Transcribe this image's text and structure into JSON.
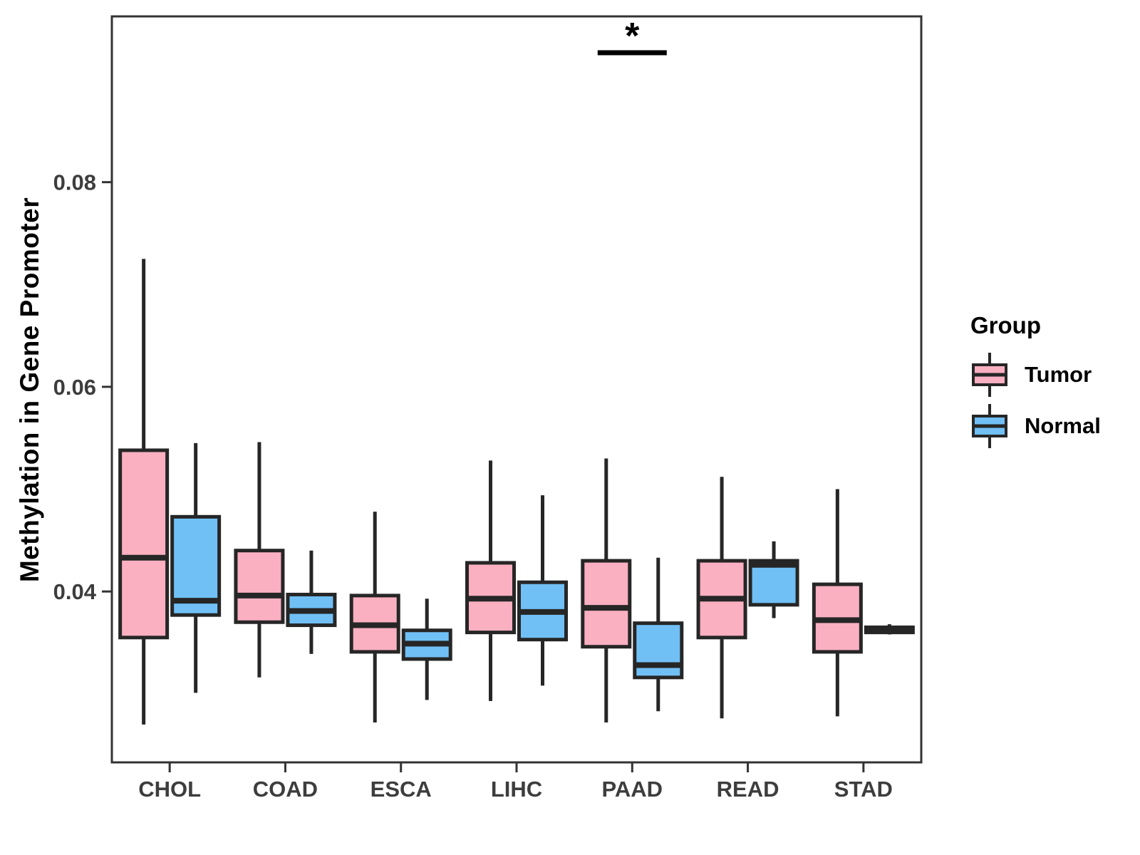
{
  "chart_data": {
    "type": "boxplot",
    "title": "",
    "xlabel": "",
    "ylabel": "Methylation in Gene Promoter",
    "categories": [
      "CHOL",
      "COAD",
      "ESCA",
      "LIHC",
      "PAAD",
      "READ",
      "STAD"
    ],
    "y_ticks": [
      0.04,
      0.06,
      0.08
    ],
    "y_tick_labels": [
      "0.04",
      "0.06",
      "0.08"
    ],
    "ylim": [
      0.0233,
      0.0962
    ],
    "grid": false,
    "legend_position": "right",
    "series": [
      {
        "name": "Tumor",
        "color": "#FAB0C1",
        "boxes": [
          {
            "category": "CHOL",
            "whisker_low": 0.027,
            "q1": 0.0355,
            "median": 0.0433,
            "q3": 0.0538,
            "whisker_high": 0.0725
          },
          {
            "category": "COAD",
            "whisker_low": 0.0316,
            "q1": 0.037,
            "median": 0.0396,
            "q3": 0.044,
            "whisker_high": 0.0546
          },
          {
            "category": "ESCA",
            "whisker_low": 0.0272,
            "q1": 0.0341,
            "median": 0.0367,
            "q3": 0.0396,
            "whisker_high": 0.0478
          },
          {
            "category": "LIHC",
            "whisker_low": 0.0293,
            "q1": 0.036,
            "median": 0.0393,
            "q3": 0.0428,
            "whisker_high": 0.0528
          },
          {
            "category": "PAAD",
            "whisker_low": 0.0272,
            "q1": 0.0346,
            "median": 0.0384,
            "q3": 0.043,
            "whisker_high": 0.053
          },
          {
            "category": "READ",
            "whisker_low": 0.0276,
            "q1": 0.0355,
            "median": 0.0393,
            "q3": 0.043,
            "whisker_high": 0.0512
          },
          {
            "category": "STAD",
            "whisker_low": 0.0278,
            "q1": 0.0341,
            "median": 0.0372,
            "q3": 0.0407,
            "whisker_high": 0.05
          }
        ]
      },
      {
        "name": "Normal",
        "color": "#70C0F6",
        "boxes": [
          {
            "category": "CHOL",
            "whisker_low": 0.0301,
            "q1": 0.0377,
            "median": 0.0391,
            "q3": 0.0473,
            "whisker_high": 0.0545
          },
          {
            "category": "COAD",
            "whisker_low": 0.0339,
            "q1": 0.0367,
            "median": 0.0381,
            "q3": 0.0397,
            "whisker_high": 0.044
          },
          {
            "category": "ESCA",
            "whisker_low": 0.0294,
            "q1": 0.0334,
            "median": 0.0349,
            "q3": 0.0362,
            "whisker_high": 0.0393
          },
          {
            "category": "LIHC",
            "whisker_low": 0.0308,
            "q1": 0.0353,
            "median": 0.038,
            "q3": 0.0409,
            "whisker_high": 0.0494
          },
          {
            "category": "PAAD",
            "whisker_low": 0.0283,
            "q1": 0.0316,
            "median": 0.0328,
            "q3": 0.0369,
            "whisker_high": 0.0433
          },
          {
            "category": "READ",
            "whisker_low": 0.0374,
            "q1": 0.0387,
            "median": 0.0426,
            "q3": 0.043,
            "whisker_high": 0.0449
          },
          {
            "category": "STAD",
            "whisker_low": 0.0358,
            "q1": 0.036,
            "median": 0.0362,
            "q3": 0.0365,
            "whisker_high": 0.0368
          }
        ]
      }
    ],
    "annotations": [
      {
        "type": "significance",
        "label": "*",
        "category": "PAAD",
        "between": [
          "Tumor",
          "Normal"
        ]
      }
    ]
  },
  "legend": {
    "title": "Group",
    "items": [
      {
        "label": "Tumor",
        "color": "#FAB0C1"
      },
      {
        "label": "Normal",
        "color": "#70C0F6"
      }
    ]
  },
  "colors": {
    "box_border": "#262626",
    "axis_text": "#3d3d3d",
    "panel_border": "#333333",
    "background": "#FFFFFF"
  }
}
